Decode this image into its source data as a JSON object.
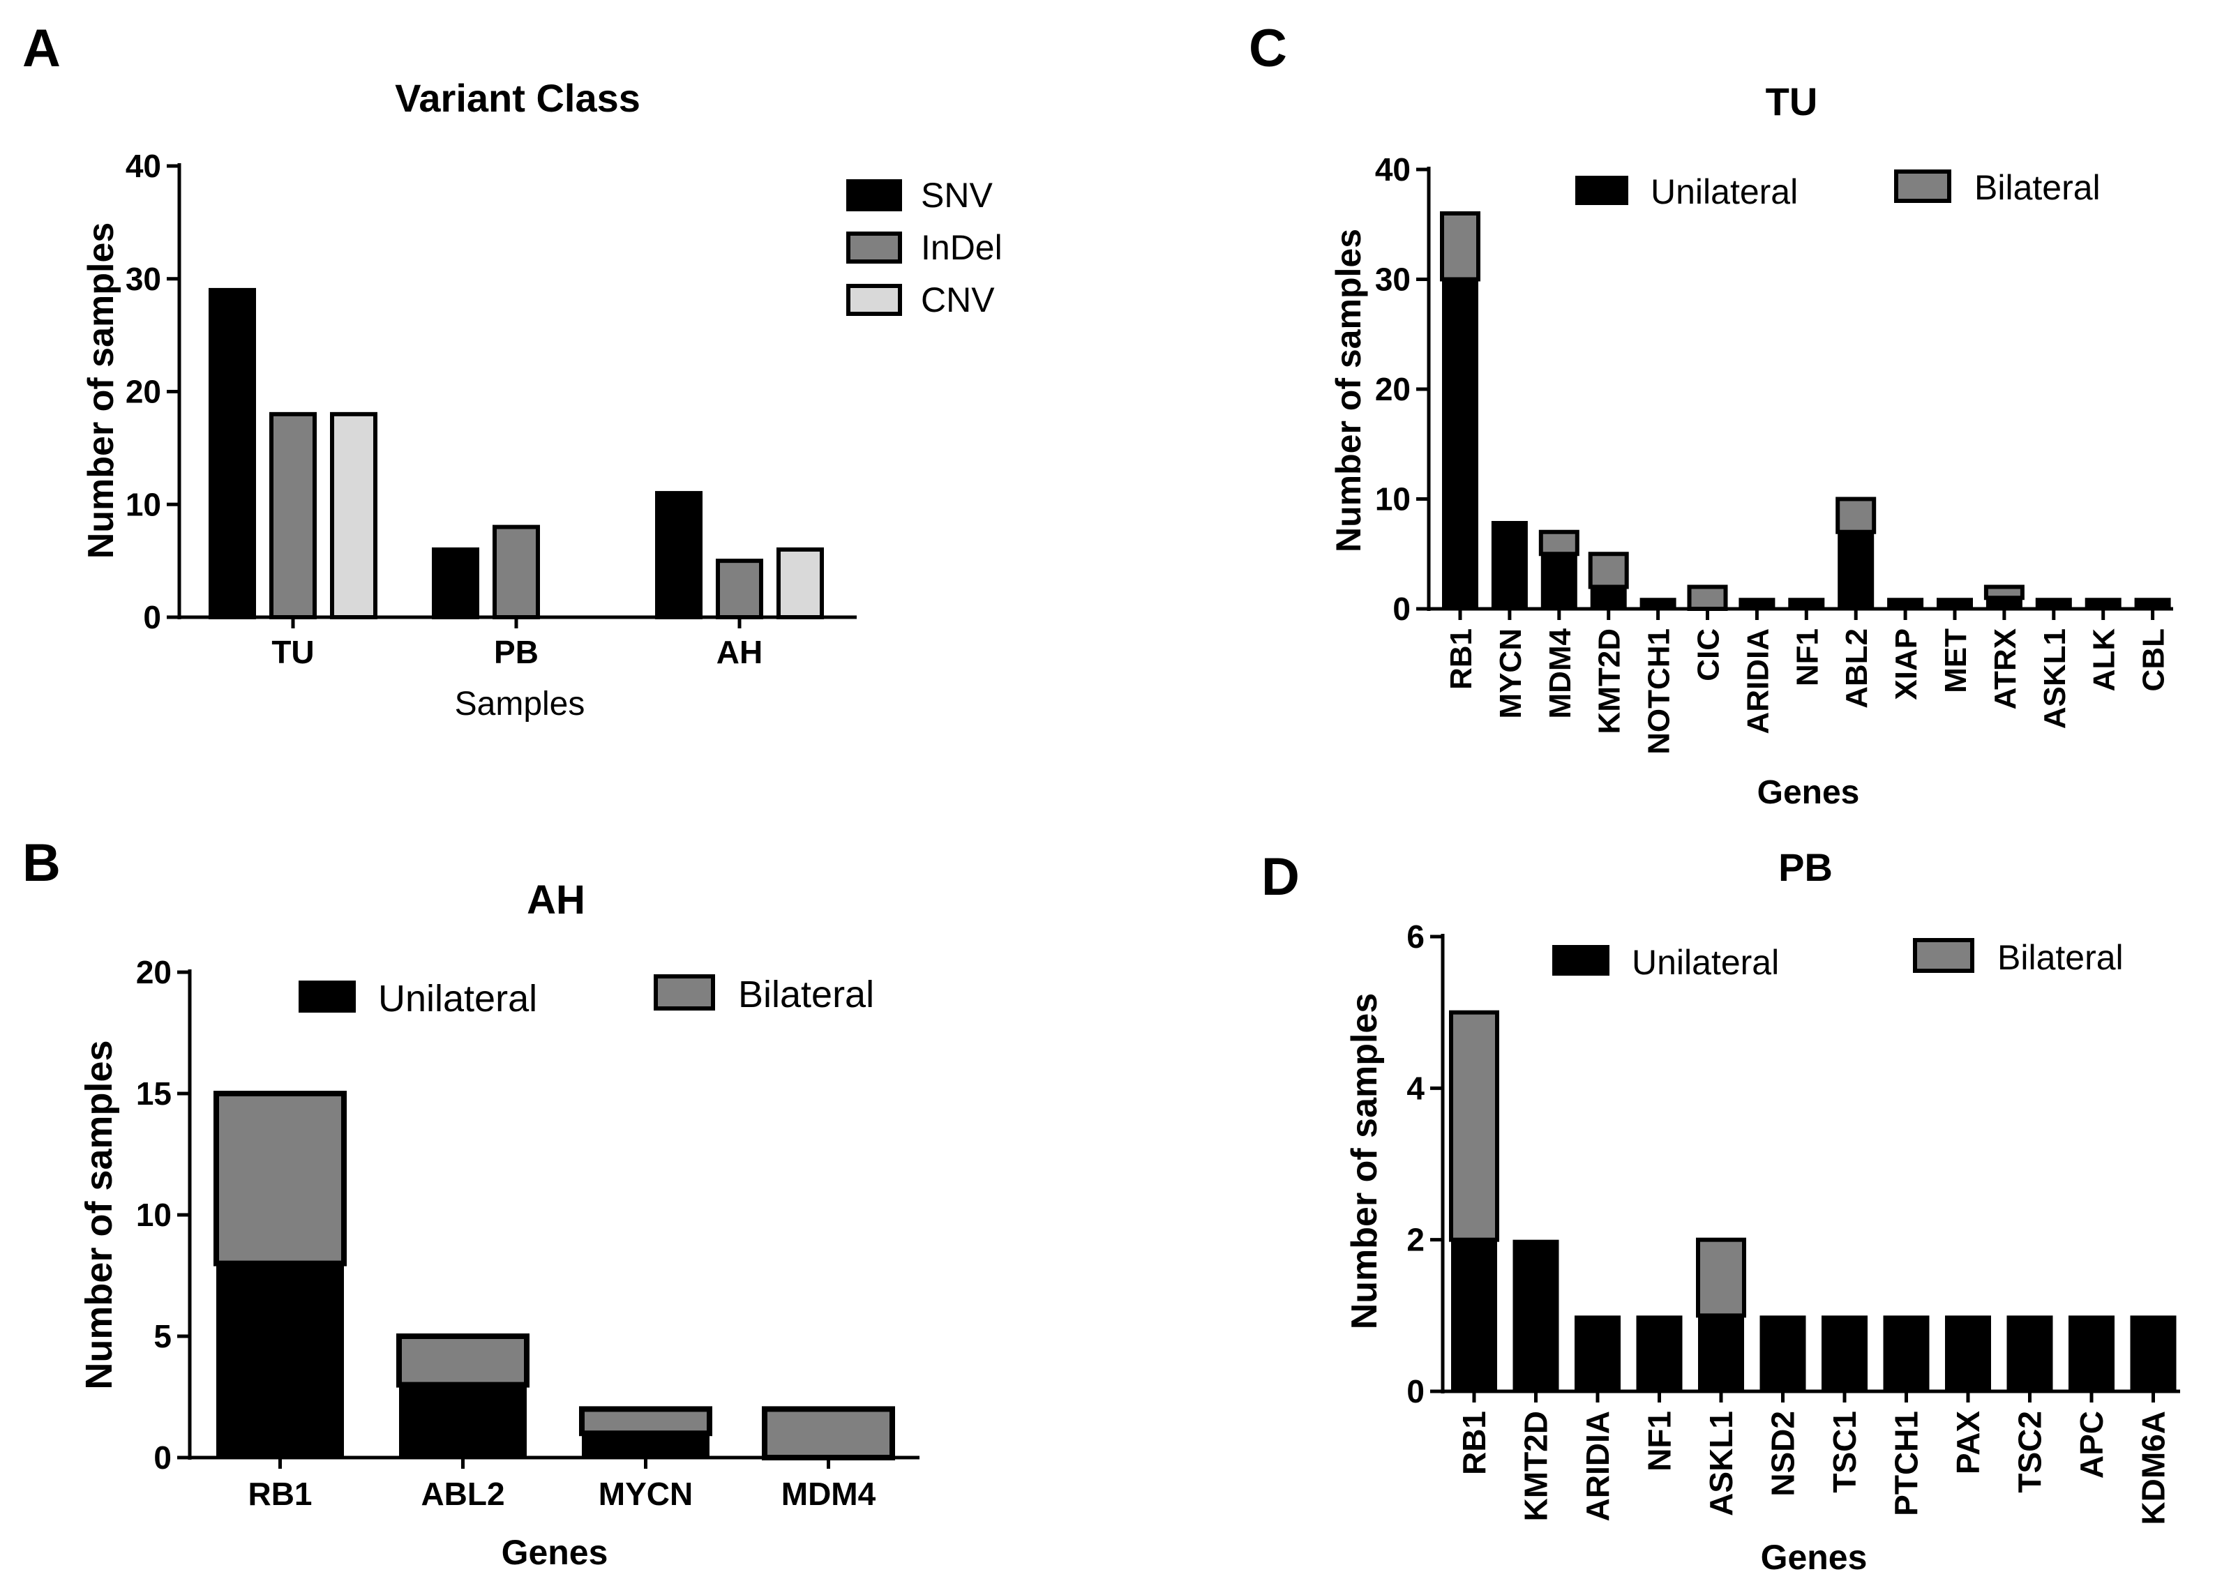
{
  "colors": {
    "snv": "#000000",
    "indel": "#808080",
    "cnv": "#d9d9d9",
    "unilateral": "#000000",
    "bilateral": "#808080"
  },
  "chart_data": [
    {
      "panel": "A",
      "type": "bar",
      "title": "Variant Class",
      "xlabel": "Samples",
      "ylabel": "Number of samples",
      "ylim": [
        0,
        40
      ],
      "yticks": [
        0,
        10,
        20,
        30,
        40
      ],
      "categories": [
        "TU",
        "PB",
        "AH"
      ],
      "series": [
        {
          "name": "SNV",
          "values": [
            29,
            6,
            11
          ]
        },
        {
          "name": "InDel",
          "values": [
            18,
            8,
            5
          ]
        },
        {
          "name": "CNV",
          "values": [
            18,
            0,
            6
          ]
        }
      ],
      "legend_position": "top-right"
    },
    {
      "panel": "B",
      "type": "bar",
      "stacked": true,
      "title": "AH",
      "xlabel": "Genes",
      "ylabel": "Number of samples",
      "ylim": [
        0,
        20
      ],
      "yticks": [
        0,
        5,
        10,
        15,
        20
      ],
      "categories": [
        "RB1",
        "ABL2",
        "MYCN",
        "MDM4"
      ],
      "series": [
        {
          "name": "Unilateral",
          "values": [
            8,
            3,
            1,
            0
          ]
        },
        {
          "name": "Bilateral",
          "values": [
            7,
            2,
            1,
            2
          ]
        }
      ],
      "legend_position": "top"
    },
    {
      "panel": "C",
      "type": "bar",
      "stacked": true,
      "title": "TU",
      "xlabel": "Genes",
      "ylabel": "Number of samples",
      "ylim": [
        0,
        40
      ],
      "yticks": [
        0,
        10,
        20,
        30,
        40
      ],
      "categories": [
        "RB1",
        "MYCN",
        "MDM4",
        "KMT2D",
        "NOTCH1",
        "CIC",
        "ARIDIA",
        "NF1",
        "ABL2",
        "XIAP",
        "MET",
        "ATRX",
        "ASKL1",
        "ALK",
        "CBL"
      ],
      "series": [
        {
          "name": "Unilateral",
          "values": [
            30,
            8,
            5,
            2,
            1,
            0,
            1,
            1,
            7,
            1,
            1,
            1,
            1,
            1,
            1
          ]
        },
        {
          "name": "Bilateral",
          "values": [
            6,
            0,
            2,
            3,
            0,
            2,
            0,
            0,
            3,
            0,
            0,
            1,
            0,
            0,
            0
          ]
        }
      ],
      "legend_position": "top"
    },
    {
      "panel": "D",
      "type": "bar",
      "stacked": true,
      "title": "PB",
      "xlabel": "Genes",
      "ylabel": "Number of samples",
      "ylim": [
        0,
        6
      ],
      "yticks": [
        0,
        2,
        4,
        6
      ],
      "categories": [
        "RB1",
        "KMT2D",
        "ARIDIA",
        "NF1",
        "ASKL1",
        "NSD2",
        "TSC1",
        "PTCH1",
        "PAX",
        "TSC2",
        "APC",
        "KDM6A"
      ],
      "series": [
        {
          "name": "Unilateral",
          "values": [
            2,
            2,
            1,
            1,
            1,
            1,
            1,
            1,
            1,
            1,
            1,
            1
          ]
        },
        {
          "name": "Bilateral",
          "values": [
            3,
            0,
            0,
            0,
            1,
            0,
            0,
            0,
            0,
            0,
            0,
            0
          ]
        }
      ],
      "legend_position": "top"
    }
  ]
}
